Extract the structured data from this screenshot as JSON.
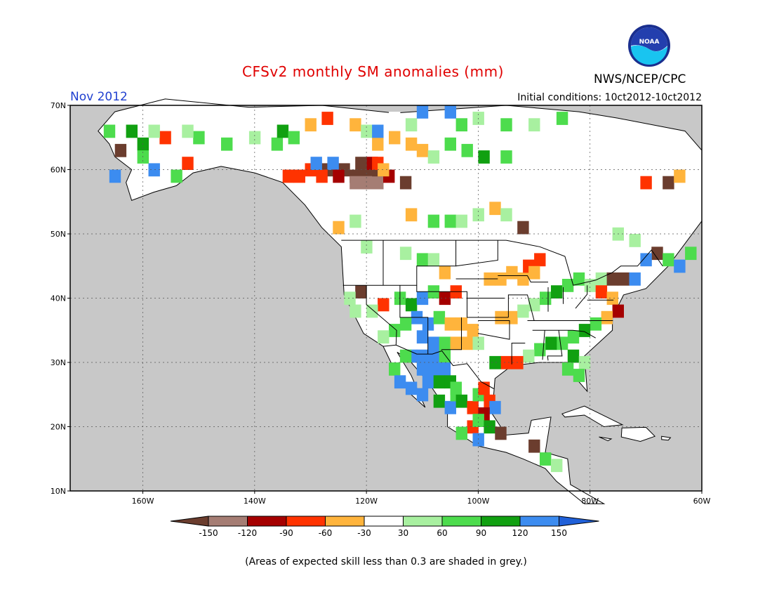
{
  "header": {
    "title": "CFSv2 monthly SM anomalies (mm)",
    "agency": "NWS/NCEP/CPC",
    "logo_text": "NOAA",
    "month": "Nov 2012",
    "initial_conditions": "Initial conditions: 10ct2012-10ct2012"
  },
  "map": {
    "lon_range": [
      -173,
      -60
    ],
    "lat_range": [
      10,
      70
    ],
    "lon_ticks": [
      "160W",
      "140W",
      "120W",
      "100W",
      "80W",
      "60W"
    ],
    "lat_ticks": [
      "70N",
      "60N",
      "50N",
      "40N",
      "30N",
      "20N",
      "10N"
    ],
    "land_color": "#ffffff",
    "ocean_color": "#c8c8c8",
    "low_skill_color": "#c8c8c8",
    "grid": true
  },
  "colorbar": {
    "labels": [
      "-150",
      "-120",
      "-90",
      "-60",
      "-30",
      "30",
      "60",
      "90",
      "120",
      "150"
    ],
    "colors": [
      "#6b3d2e",
      "#a57d74",
      "#a50000",
      "#ff3300",
      "#ffb43c",
      "#ffffff",
      "#a8f0a0",
      "#4ddc4d",
      "#11a011",
      "#3c8cf0",
      "#2060d8"
    ]
  },
  "footnote": "(Areas of expected skill less than 0.3 are shaded in grey.)"
}
